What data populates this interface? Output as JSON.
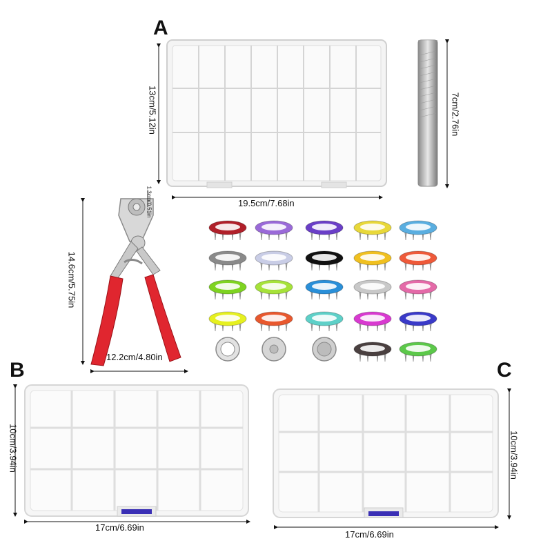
{
  "labels": {
    "a": "A",
    "b": "B",
    "c": "C"
  },
  "dimensions": {
    "box_a_height": "13cm/5.12in",
    "box_a_width": "19.5cm/7.68in",
    "punch_tool_height": "7cm/2.76in",
    "pliers_height": "14.6cm/5.75in",
    "pliers_width": "12.2cm/4.80in",
    "pliers_jaw": "1.3cm/0.51in",
    "box_b_height": "10cm/3.94in",
    "box_b_width": "17cm/6.69in",
    "box_c_height": "10cm/3.94in",
    "box_c_width": "17cm/6.69in"
  },
  "colors": {
    "pliers_handle": "#e0262f",
    "box_latch": "#3a2fb5",
    "snap_rings": [
      "#b0202a",
      "#9a6ad8",
      "#6a3fc7",
      "#e8d83a",
      "#5aaee0",
      "#8a8a8a",
      "#c9cde6",
      "#111111",
      "#f0c020",
      "#ee5a3a",
      "#7ed321",
      "#a6e23a",
      "#2a8fd8",
      "#c8c8c8",
      "#e46aa8",
      "#e6f020",
      "#e8582e",
      "#5ed0c8",
      "#d83ad0",
      "#3a3ac8",
      "#e2e2e2",
      "#d6d6d6",
      "#cfcfcf",
      "#4a4040",
      "#5cc84a"
    ]
  }
}
